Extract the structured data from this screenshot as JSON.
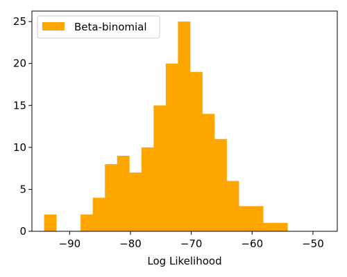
{
  "chart_data": {
    "type": "bar",
    "subtype": "histogram",
    "title": "",
    "xlabel": "Log Likelihood",
    "ylabel": "",
    "xlim": [
      -96.2,
      -46.0
    ],
    "ylim": [
      0,
      26.25
    ],
    "xticks": [
      -90,
      -80,
      -70,
      -60,
      -50
    ],
    "xtick_labels": [
      "−90",
      "−80",
      "−70",
      "−60",
      "−50"
    ],
    "yticks": [
      0,
      5,
      10,
      15,
      20,
      25
    ],
    "ytick_labels": [
      "0",
      "5",
      "10",
      "15",
      "20",
      "25"
    ],
    "grid": false,
    "legend": {
      "position": "top-left"
    },
    "series": [
      {
        "name": "Beta-binomial",
        "color": "#ffa500",
        "bins": [
          {
            "x0": -94.2,
            "x1": -92.2,
            "count": 2
          },
          {
            "x0": -92.2,
            "x1": -90.2,
            "count": 0
          },
          {
            "x0": -90.2,
            "x1": -88.2,
            "count": 0
          },
          {
            "x0": -88.2,
            "x1": -86.2,
            "count": 2
          },
          {
            "x0": -86.2,
            "x1": -84.2,
            "count": 4
          },
          {
            "x0": -84.2,
            "x1": -82.2,
            "count": 8
          },
          {
            "x0": -82.2,
            "x1": -80.2,
            "count": 9
          },
          {
            "x0": -80.2,
            "x1": -78.2,
            "count": 7
          },
          {
            "x0": -78.2,
            "x1": -76.2,
            "count": 10
          },
          {
            "x0": -76.2,
            "x1": -74.2,
            "count": 15
          },
          {
            "x0": -74.2,
            "x1": -72.2,
            "count": 20
          },
          {
            "x0": -72.2,
            "x1": -70.2,
            "count": 25
          },
          {
            "x0": -70.2,
            "x1": -68.2,
            "count": 19
          },
          {
            "x0": -68.2,
            "x1": -66.2,
            "count": 14
          },
          {
            "x0": -66.2,
            "x1": -64.2,
            "count": 11
          },
          {
            "x0": -64.2,
            "x1": -62.2,
            "count": 6
          },
          {
            "x0": -62.2,
            "x1": -60.2,
            "count": 3
          },
          {
            "x0": -60.2,
            "x1": -58.2,
            "count": 3
          },
          {
            "x0": -58.2,
            "x1": -56.2,
            "count": 1
          },
          {
            "x0": -56.2,
            "x1": -54.2,
            "count": 1
          }
        ]
      }
    ]
  }
}
